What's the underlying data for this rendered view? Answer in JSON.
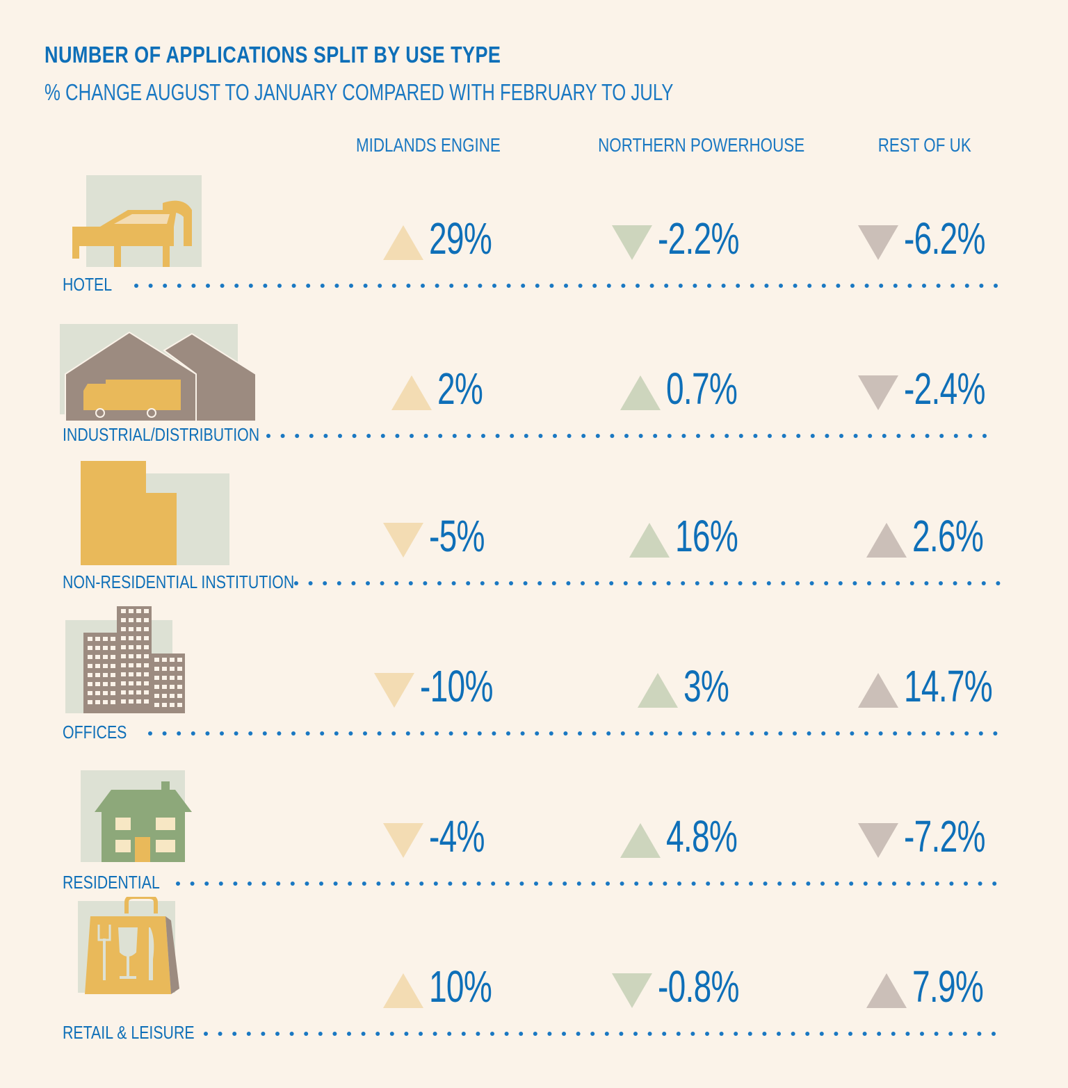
{
  "chart_data": {
    "type": "table",
    "title": "NUMBER OF APPLICATIONS SPLIT BY USE TYPE",
    "subtitle": "% CHANGE AUGUST TO JANUARY COMPARED WITH FEBRUARY TO JULY",
    "columns": [
      "MIDLANDS ENGINE",
      "NORTHERN POWERHOUSE",
      "REST OF UK"
    ],
    "rows": [
      {
        "category": "HOTEL",
        "icon": "bed-icon",
        "values": [
          29,
          -2.2,
          -6.2
        ],
        "labels": [
          "29%",
          "-2.2%",
          "-6.2%"
        ]
      },
      {
        "category": "INDUSTRIAL/DISTRIBUTION",
        "icon": "warehouse-truck-icon",
        "values": [
          2,
          0.7,
          -2.4
        ],
        "labels": [
          "2%",
          "0.7%",
          "-2.4%"
        ]
      },
      {
        "category": "NON-RESIDENTIAL INSTITUTION",
        "icon": "institution-building-icon",
        "values": [
          -5,
          16,
          2.6
        ],
        "labels": [
          "-5%",
          "16%",
          "2.6%"
        ]
      },
      {
        "category": "OFFICES",
        "icon": "office-tower-icon",
        "values": [
          -10,
          3,
          14.7
        ],
        "labels": [
          "-10%",
          "3%",
          "14.7%"
        ]
      },
      {
        "category": "RESIDENTIAL",
        "icon": "house-icon",
        "values": [
          -4,
          4.8,
          -7.2
        ],
        "labels": [
          "-4%",
          "4.8%",
          "-7.2%"
        ]
      },
      {
        "category": "RETAIL & LEISURE",
        "icon": "shopping-bag-icon",
        "values": [
          10,
          -0.8,
          7.9
        ],
        "labels": [
          "10%",
          "-0.8%",
          "7.9%"
        ]
      }
    ],
    "column_colors": [
      "#f3dcb3",
      "#cdd5bd",
      "#cbbfb8"
    ],
    "value_color": "#0e6fb8"
  }
}
